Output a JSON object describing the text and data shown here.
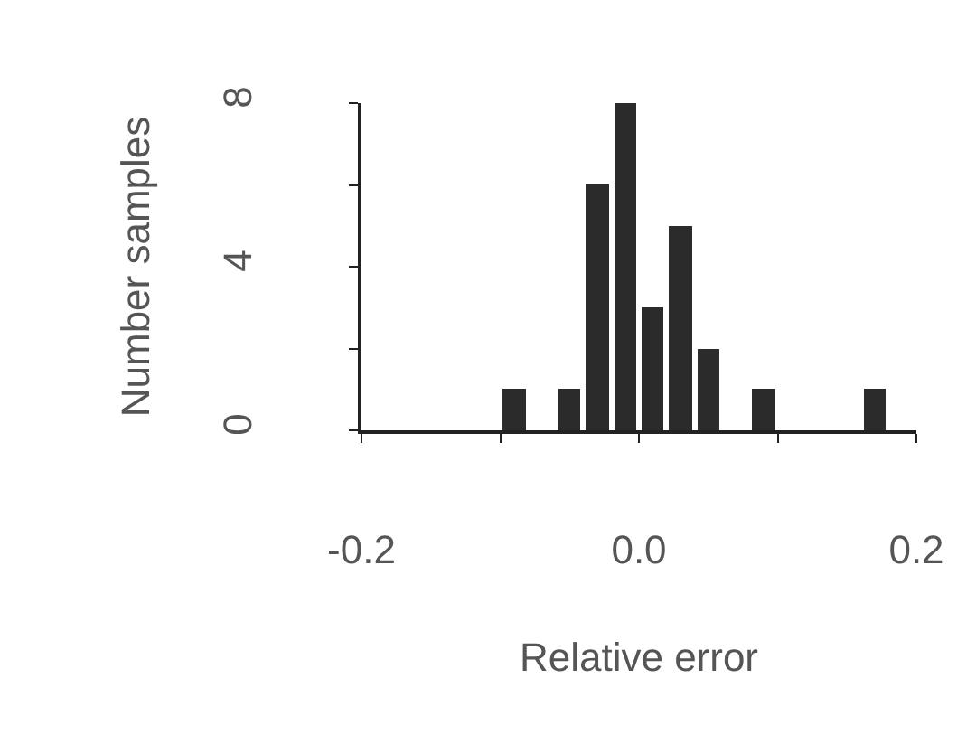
{
  "chart_data": {
    "type": "histogram",
    "xlabel": "Relative error",
    "ylabel": "Number samples",
    "bins": [
      -0.1,
      -0.08,
      -0.06,
      -0.04,
      -0.02,
      0,
      0.02,
      0.04,
      0.06,
      0.08,
      0.1,
      0.12,
      0.14,
      0.16,
      0.18
    ],
    "values": [
      1,
      0,
      1,
      6,
      8,
      3,
      5,
      2,
      0,
      1,
      0,
      0,
      0,
      1
    ],
    "color": "#2b2b2b",
    "xlim": [
      -0.2,
      0.2
    ],
    "xticks": [
      -0.2,
      {
        "value": -0.1,
        "label": null
      },
      {
        "value": 0,
        "label": "0.0"
      },
      {
        "value": 0.1,
        "label": null
      },
      0.2
    ],
    "ylim": [
      0,
      8
    ],
    "yticks": [
      0,
      {
        "value": 2,
        "label": null
      },
      4,
      {
        "value": 6,
        "label": null
      },
      8
    ],
    "grid": false
  }
}
